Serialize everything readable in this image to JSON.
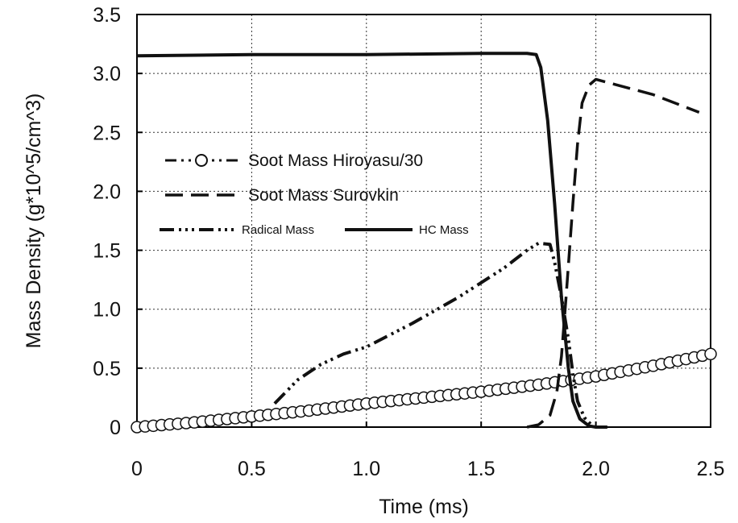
{
  "chart_data": {
    "type": "line",
    "title": "",
    "xlabel": "Time  (ms)",
    "ylabel": "Mass  Density  (g*10^5/cm^3)",
    "xlim": [
      0,
      2.5
    ],
    "ylim": [
      0,
      3.5
    ],
    "grid": true,
    "legend_position": "center-left",
    "x_ticks": [
      "0",
      "0.5",
      "1.0",
      "1.5",
      "2.0",
      "2.5"
    ],
    "y_ticks": [
      "0",
      "0.5",
      "1.0",
      "1.5",
      "2.0",
      "2.5",
      "3.0",
      "3.5"
    ],
    "series": [
      {
        "name": "Soot Mass Hiroyasu/30",
        "style": "dash-dot-dot with circle markers",
        "x": [
          0,
          0.25,
          0.5,
          0.75,
          1.0,
          1.25,
          1.5,
          1.75,
          2.0,
          2.25,
          2.5
        ],
        "y": [
          0,
          0.04,
          0.09,
          0.14,
          0.2,
          0.25,
          0.3,
          0.36,
          0.43,
          0.52,
          0.62
        ]
      },
      {
        "name": "Soot Mass Surovkin",
        "style": "dashed",
        "x": [
          1.7,
          1.75,
          1.8,
          1.83,
          1.85,
          1.87,
          1.9,
          1.92,
          1.94,
          1.97,
          2.0,
          2.25,
          2.45
        ],
        "y": [
          0,
          0.02,
          0.1,
          0.3,
          0.6,
          1.1,
          1.9,
          2.4,
          2.75,
          2.9,
          2.95,
          2.82,
          2.67
        ]
      },
      {
        "name": "Radical Mass",
        "style": "dash-dot-dot",
        "x": [
          0.6,
          0.7,
          0.8,
          0.9,
          1.0,
          1.2,
          1.4,
          1.6,
          1.7,
          1.75,
          1.8,
          1.82,
          1.85,
          1.88,
          1.9,
          1.92,
          1.95,
          1.98,
          2.0
        ],
        "y": [
          0.2,
          0.4,
          0.53,
          0.62,
          0.68,
          0.88,
          1.1,
          1.35,
          1.5,
          1.56,
          1.55,
          1.4,
          1.1,
          0.75,
          0.45,
          0.22,
          0.08,
          0.02,
          0
        ]
      },
      {
        "name": "HC Mass",
        "style": "solid",
        "x": [
          0,
          0.5,
          1.0,
          1.5,
          1.7,
          1.74,
          1.76,
          1.79,
          1.82,
          1.85,
          1.88,
          1.9,
          1.93,
          1.97,
          2.0,
          2.05
        ],
        "y": [
          3.15,
          3.16,
          3.16,
          3.17,
          3.17,
          3.16,
          3.05,
          2.6,
          1.9,
          1.1,
          0.5,
          0.22,
          0.07,
          0.01,
          0,
          0
        ]
      }
    ]
  }
}
